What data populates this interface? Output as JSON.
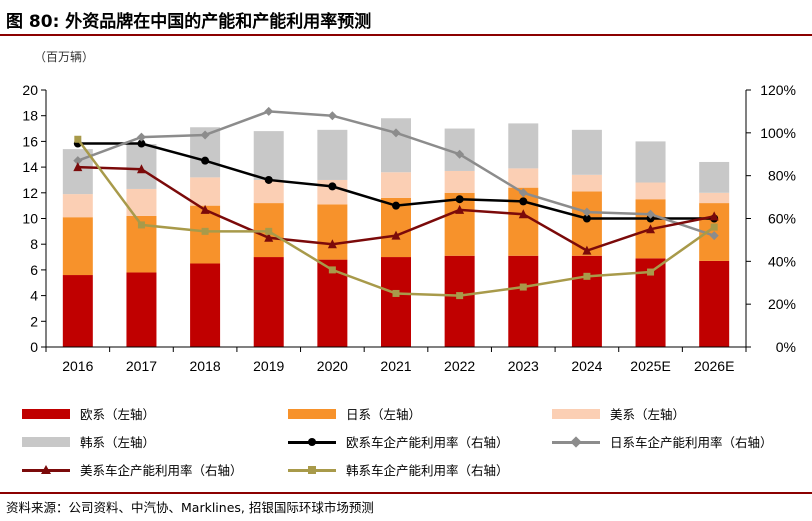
{
  "figure": {
    "title": "图 80: 外资品牌在中国的产能和产能利用率预测",
    "unit_label": "（百万辆）",
    "source": "资料来源：公司资料、中汽协、Marklines, 招银国际环球市场预测"
  },
  "legend": {
    "eu": "欧系（左轴）",
    "jp": "日系（左轴）",
    "us": "美系（左轴）",
    "kr": "韩系（左轴）",
    "eu_util": "欧系车企产能利用率（右轴）",
    "jp_util": "日系车企产能利用率（右轴）",
    "us_util": "美系车企产能利用率（右轴）",
    "kr_util": "韩系车企产能利用率（右轴）"
  },
  "colors": {
    "eu": "#c00000",
    "jp": "#f7922b",
    "us": "#fbcfb4",
    "kr": "#c8c8c8",
    "eu_util": "#000000",
    "jp_util": "#8c8c8c",
    "us_util": "#7b0a0a",
    "kr_util": "#a89a4a",
    "title_rule": "#8b0000"
  },
  "chart_data": {
    "type": "bar",
    "stacked": true,
    "categories": [
      "2016",
      "2017",
      "2018",
      "2019",
      "2020",
      "2021",
      "2022",
      "2023",
      "2024",
      "2025E",
      "2026E"
    ],
    "series": [
      {
        "name": "欧系（左轴）",
        "values": [
          5.6,
          5.8,
          6.5,
          7.0,
          6.8,
          7.0,
          7.1,
          7.1,
          7.1,
          6.9,
          6.7
        ]
      },
      {
        "name": "日系（左轴）",
        "values": [
          4.5,
          4.4,
          4.5,
          4.2,
          4.3,
          4.6,
          4.9,
          5.3,
          5.0,
          4.6,
          4.5
        ]
      },
      {
        "name": "美系（左轴）",
        "values": [
          1.8,
          2.1,
          2.2,
          1.8,
          1.9,
          2.0,
          1.7,
          1.5,
          1.3,
          1.3,
          0.8
        ]
      },
      {
        "name": "韩系（左轴）",
        "values": [
          3.5,
          3.5,
          3.9,
          3.8,
          3.9,
          4.2,
          3.3,
          3.5,
          3.5,
          3.2,
          2.4
        ]
      }
    ],
    "line_series": [
      {
        "name": "欧系车企产能利用率（右轴）",
        "marker": "circle",
        "values": [
          95,
          95,
          87,
          78,
          75,
          66,
          69,
          68,
          60,
          60,
          60
        ]
      },
      {
        "name": "日系车企产能利用率（右轴）",
        "marker": "diamond",
        "values": [
          87,
          98,
          99,
          110,
          108,
          100,
          90,
          72,
          63,
          62,
          52
        ]
      },
      {
        "name": "美系车企产能利用率（右轴）",
        "marker": "triangle",
        "values": [
          84,
          83,
          64,
          51,
          48,
          52,
          64,
          62,
          45,
          55,
          61
        ]
      },
      {
        "name": "韩系车企产能利用率（右轴）",
        "marker": "square",
        "values": [
          97,
          57,
          54,
          54,
          36,
          25,
          24,
          28,
          33,
          35,
          56
        ]
      }
    ],
    "left_axis": {
      "min": 0,
      "max": 20,
      "step": 2,
      "ticks": [
        "0",
        "2",
        "4",
        "6",
        "8",
        "10",
        "12",
        "14",
        "16",
        "18",
        "20"
      ]
    },
    "right_axis": {
      "min": 0,
      "max": 120,
      "step": 20,
      "ticks": [
        "0%",
        "20%",
        "40%",
        "60%",
        "80%",
        "100%",
        "120%"
      ]
    },
    "grid": false,
    "legend_position": "bottom"
  }
}
